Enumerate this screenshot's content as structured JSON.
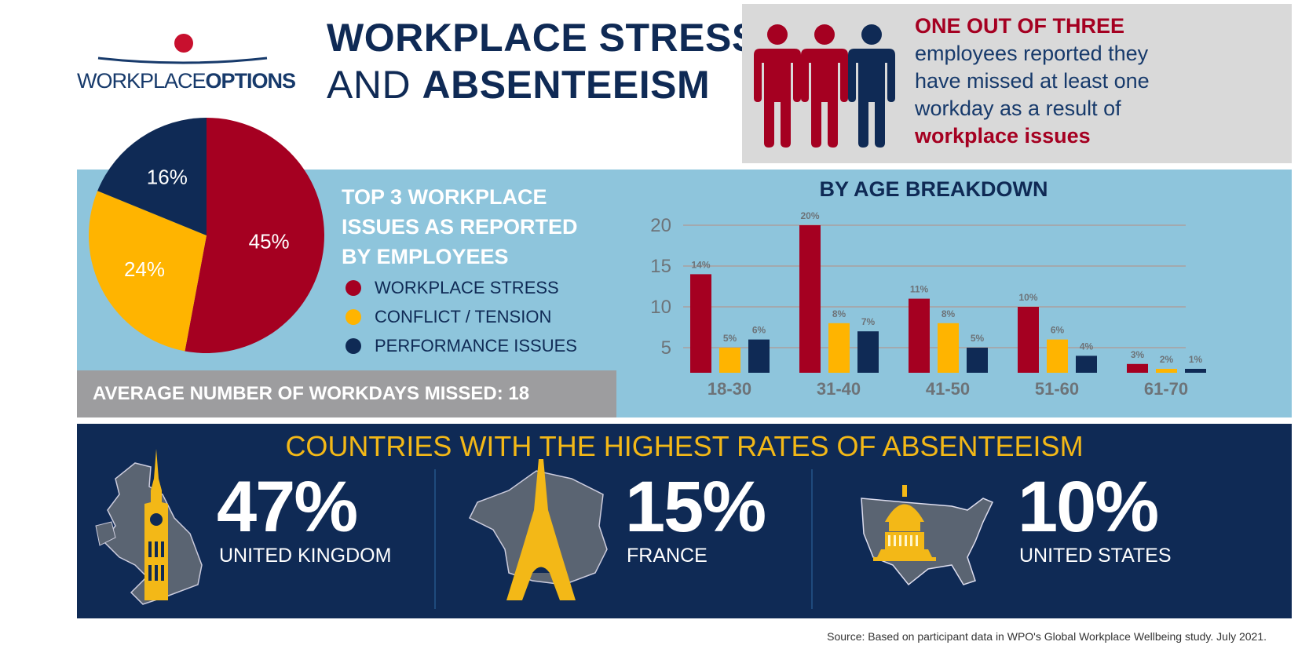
{
  "logo": {
    "word1": "WORKPLACE",
    "word2": "OPTIONS"
  },
  "title": {
    "line1": "WORKPLACE STRESS",
    "line2_light": "AND",
    "line2_bold": "ABSENTEEISM"
  },
  "callout": {
    "headline": "ONE OUT OF THREE",
    "lines": [
      "employees reported they",
      "have missed at least one",
      "workday as a result of"
    ],
    "emphasis": "workplace issues",
    "people_colors": [
      "#a50021",
      "#a50021",
      "#0f2a55"
    ]
  },
  "issues": {
    "title_lines": [
      "TOP 3 WORKPLACE",
      "ISSUES AS REPORTED",
      "BY EMPLOYEES"
    ],
    "legend": [
      {
        "label": "WORKPLACE STRESS",
        "color": "#a50021"
      },
      {
        "label": "CONFLICT / TENSION",
        "color": "#ffb400"
      },
      {
        "label": "PERFORMANCE ISSUES",
        "color": "#0f2a55"
      }
    ]
  },
  "average": {
    "text": "AVERAGE NUMBER OF WORKDAYS MISSED: 18"
  },
  "chart_data": [
    {
      "type": "pie",
      "title": "Top 3 workplace issues as reported by employees",
      "labels": [
        "Workplace Stress",
        "Conflict / Tension",
        "Performance Issues"
      ],
      "values": [
        45,
        24,
        16
      ],
      "value_labels": [
        "45%",
        "24%",
        "16%"
      ],
      "colors": [
        "#a50021",
        "#ffb400",
        "#0f2a55"
      ]
    },
    {
      "type": "bar",
      "title": "BY AGE BREAKDOWN",
      "categories": [
        "18-30",
        "31-40",
        "41-50",
        "51-60",
        "61-70"
      ],
      "series": [
        {
          "name": "Workplace Stress",
          "color": "#a50021",
          "values": [
            14,
            20,
            11,
            10,
            3
          ]
        },
        {
          "name": "Conflict / Tension",
          "color": "#ffb400",
          "values": [
            5,
            8,
            8,
            6,
            2
          ]
        },
        {
          "name": "Performance Issues",
          "color": "#0f2a55",
          "values": [
            6,
            7,
            5,
            4,
            1
          ]
        }
      ],
      "yticks": [
        5,
        10,
        15,
        20
      ],
      "ylim": [
        2,
        20
      ],
      "grid": true,
      "xlabel": "",
      "ylabel": ""
    }
  ],
  "countries": {
    "title": "COUNTRIES WITH THE HIGHEST RATES OF ABSENTEEISM",
    "items": [
      {
        "pct": "47%",
        "name": "UNITED KINGDOM",
        "icon": "big-ben-uk-map-icon"
      },
      {
        "pct": "15%",
        "name": "FRANCE",
        "icon": "eiffel-tower-france-map-icon"
      },
      {
        "pct": "10%",
        "name": "UNITED STATES",
        "icon": "capitol-us-map-icon"
      }
    ]
  },
  "source": "Source: Based on participant data in WPO's Global Workplace Wellbeing study. July 2021."
}
